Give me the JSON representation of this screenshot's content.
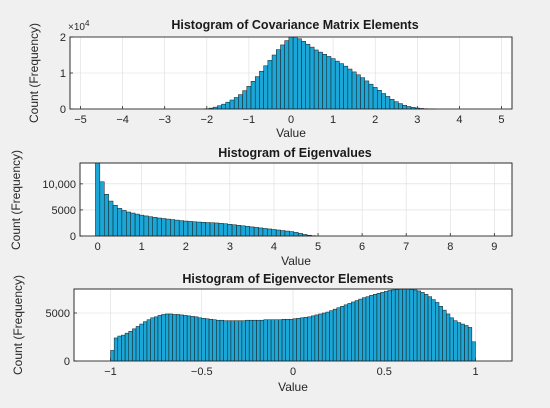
{
  "chart_data": [
    {
      "type": "bar",
      "title": "Histogram of Covariance Matrix Elements",
      "xlabel": "Value",
      "ylabel": "Count (Frequency)",
      "exponent_label": "×10",
      "exponent_power": "4",
      "xlim": [
        -5.25,
        5.25
      ],
      "ylim": [
        0,
        20000
      ],
      "x_ticks": [
        -5,
        -4,
        -3,
        -2,
        -1,
        0,
        1,
        2,
        3,
        4,
        5
      ],
      "y_ticks": [
        0,
        10000,
        20000
      ],
      "y_tick_labels": [
        "0",
        "1",
        "2"
      ],
      "bin_width": 0.1,
      "x": [
        -2.0,
        -1.9,
        -1.8,
        -1.7,
        -1.6,
        -1.5,
        -1.4,
        -1.3,
        -1.2,
        -1.1,
        -1.0,
        -0.9,
        -0.8,
        -0.7,
        -0.6,
        -0.5,
        -0.4,
        -0.3,
        -0.2,
        -0.1,
        0.0,
        0.1,
        0.2,
        0.3,
        0.4,
        0.5,
        0.6,
        0.7,
        0.8,
        0.9,
        1.0,
        1.1,
        1.2,
        1.3,
        1.4,
        1.5,
        1.6,
        1.7,
        1.8,
        1.9,
        2.0,
        2.1,
        2.2,
        2.3,
        2.4,
        2.5,
        2.6,
        2.7,
        2.8,
        2.9,
        3.0,
        3.1,
        3.2,
        3.3,
        3.4
      ],
      "values": [
        80,
        250,
        520,
        900,
        1350,
        1900,
        2500,
        3200,
        4000,
        5100,
        6300,
        7700,
        9000,
        10500,
        12000,
        13500,
        15000,
        16500,
        17800,
        19000,
        20000,
        20000,
        19500,
        18800,
        18000,
        17200,
        16400,
        15800,
        15200,
        14600,
        14000,
        13300,
        12600,
        11900,
        11100,
        10300,
        9500,
        8700,
        7800,
        6900,
        6000,
        5200,
        4300,
        3500,
        2700,
        2050,
        1500,
        1050,
        700,
        450,
        280,
        160,
        90,
        45,
        20
      ],
      "grid": true
    },
    {
      "type": "bar",
      "title": "Histogram of Eigenvalues",
      "xlabel": "Value",
      "ylabel": "Count (Frequency)",
      "xlim": [
        -0.4,
        9.4
      ],
      "ylim": [
        0,
        14000
      ],
      "x_ticks": [
        0,
        1,
        2,
        3,
        4,
        5,
        6,
        7,
        8,
        9
      ],
      "y_ticks": [
        0,
        5000,
        10000
      ],
      "y_tick_labels": [
        "0",
        "5000",
        "10,000"
      ],
      "bin_width": 0.1,
      "x": [
        0.0,
        0.1,
        0.2,
        0.3,
        0.4,
        0.5,
        0.6,
        0.7,
        0.8,
        0.9,
        1.0,
        1.1,
        1.2,
        1.3,
        1.4,
        1.5,
        1.6,
        1.7,
        1.8,
        1.9,
        2.0,
        2.1,
        2.2,
        2.3,
        2.4,
        2.5,
        2.6,
        2.7,
        2.8,
        2.9,
        3.0,
        3.1,
        3.2,
        3.3,
        3.4,
        3.5,
        3.6,
        3.7,
        3.8,
        3.9,
        4.0,
        4.1,
        4.2,
        4.3,
        4.4,
        4.5,
        4.6,
        4.7,
        4.8,
        4.9
      ],
      "values": [
        14000,
        10400,
        8000,
        6700,
        5900,
        5300,
        4900,
        4600,
        4400,
        4200,
        4000,
        3850,
        3700,
        3580,
        3450,
        3350,
        3250,
        3150,
        3050,
        2950,
        2870,
        2800,
        2730,
        2680,
        2630,
        2580,
        2550,
        2500,
        2430,
        2350,
        2250,
        2150,
        2050,
        1950,
        1850,
        1750,
        1650,
        1550,
        1450,
        1350,
        1250,
        1150,
        1050,
        950,
        850,
        700,
        500,
        300,
        150,
        60
      ],
      "grid": true
    },
    {
      "type": "bar",
      "title": "Histogram of Eigenvector Elements",
      "xlabel": "Value",
      "ylabel": "Count (Frequency)",
      "xlim": [
        -1.2,
        1.2
      ],
      "ylim": [
        0,
        7500
      ],
      "x_ticks": [
        -1,
        -0.5,
        0,
        0.5,
        1
      ],
      "y_ticks": [
        0,
        5000
      ],
      "y_tick_labels": [
        "0",
        "5000"
      ],
      "bin_width": 0.02,
      "x": [
        -0.99,
        -0.97,
        -0.95,
        -0.93,
        -0.91,
        -0.89,
        -0.87,
        -0.85,
        -0.83,
        -0.81,
        -0.79,
        -0.77,
        -0.75,
        -0.73,
        -0.71,
        -0.69,
        -0.67,
        -0.65,
        -0.63,
        -0.61,
        -0.59,
        -0.57,
        -0.55,
        -0.53,
        -0.51,
        -0.49,
        -0.47,
        -0.45,
        -0.43,
        -0.41,
        -0.39,
        -0.37,
        -0.35,
        -0.33,
        -0.31,
        -0.29,
        -0.27,
        -0.25,
        -0.23,
        -0.21,
        -0.19,
        -0.17,
        -0.15,
        -0.13,
        -0.11,
        -0.09,
        -0.07,
        -0.05,
        -0.03,
        -0.01,
        0.01,
        0.03,
        0.05,
        0.07,
        0.09,
        0.11,
        0.13,
        0.15,
        0.17,
        0.19,
        0.21,
        0.23,
        0.25,
        0.27,
        0.29,
        0.31,
        0.33,
        0.35,
        0.37,
        0.39,
        0.41,
        0.43,
        0.45,
        0.47,
        0.49,
        0.51,
        0.53,
        0.55,
        0.57,
        0.59,
        0.61,
        0.63,
        0.65,
        0.67,
        0.69,
        0.71,
        0.73,
        0.75,
        0.77,
        0.79,
        0.81,
        0.83,
        0.85,
        0.87,
        0.89,
        0.91,
        0.93,
        0.95,
        0.97,
        0.99
      ],
      "values": [
        1100,
        2400,
        2600,
        2700,
        2900,
        3100,
        3350,
        3600,
        3850,
        4100,
        4300,
        4500,
        4600,
        4750,
        4850,
        4900,
        4900,
        4850,
        4850,
        4800,
        4750,
        4700,
        4650,
        4600,
        4500,
        4450,
        4400,
        4350,
        4300,
        4250,
        4250,
        4200,
        4200,
        4200,
        4200,
        4200,
        4200,
        4250,
        4250,
        4250,
        4250,
        4250,
        4300,
        4300,
        4300,
        4300,
        4300,
        4350,
        4350,
        4350,
        4400,
        4450,
        4500,
        4550,
        4600,
        4700,
        4800,
        4900,
        5000,
        5100,
        5250,
        5400,
        5550,
        5700,
        5850,
        6000,
        6150,
        6300,
        6450,
        6600,
        6700,
        6850,
        6950,
        7050,
        7150,
        7250,
        7350,
        7400,
        7450,
        7500,
        7500,
        7500,
        7450,
        7400,
        7300,
        7150,
        6950,
        6700,
        6400,
        6100,
        5700,
        5300,
        4900,
        4500,
        4200,
        4000,
        3850,
        3700,
        3500,
        2000
      ],
      "grid": true
    }
  ]
}
